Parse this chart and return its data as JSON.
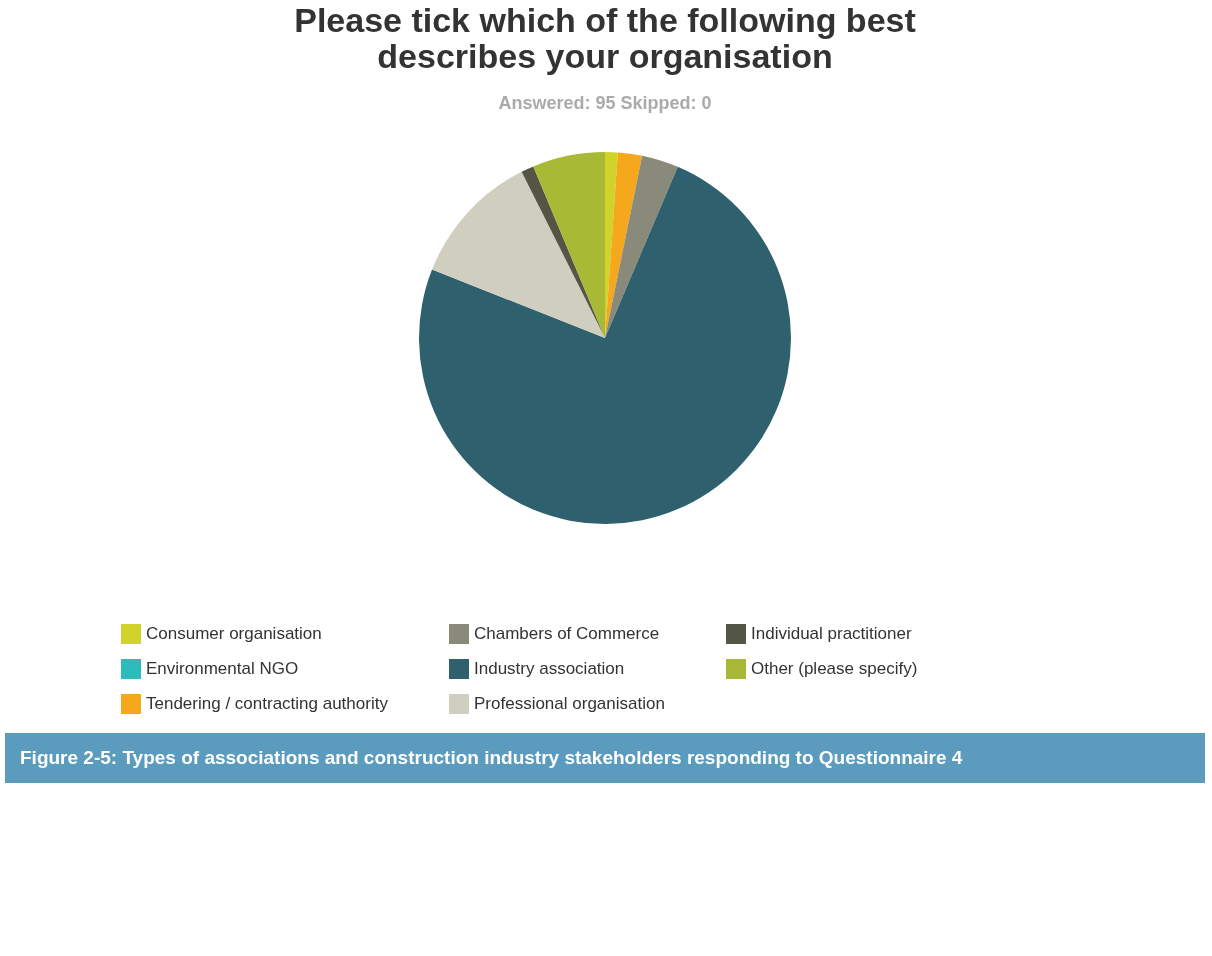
{
  "chart_data": {
    "type": "pie",
    "title": "Please tick which of the following best describes your organisation",
    "subtitle": "Answered: 95     Skipped: 0",
    "categories": [
      "Consumer organisation",
      "Environmental NGO",
      "Tendering / contracting authority",
      "Chambers of Commerce",
      "Industry association",
      "Professional organisation",
      "Individual practitioner",
      "Other (please specify)"
    ],
    "values": [
      1.1,
      0,
      2.1,
      3.2,
      74.6,
      11.6,
      1.1,
      6.3
    ],
    "colors": [
      "#cfd32a",
      "#2dbcbc",
      "#f5a81c",
      "#8a8a7a",
      "#2f606e",
      "#d0cebf",
      "#555545",
      "#a8ba35"
    ],
    "legend": "bottom",
    "annotations": [
      "Figure 2-5: Types of associations and construction industry stakeholders responding to Questionnaire 4"
    ]
  }
}
